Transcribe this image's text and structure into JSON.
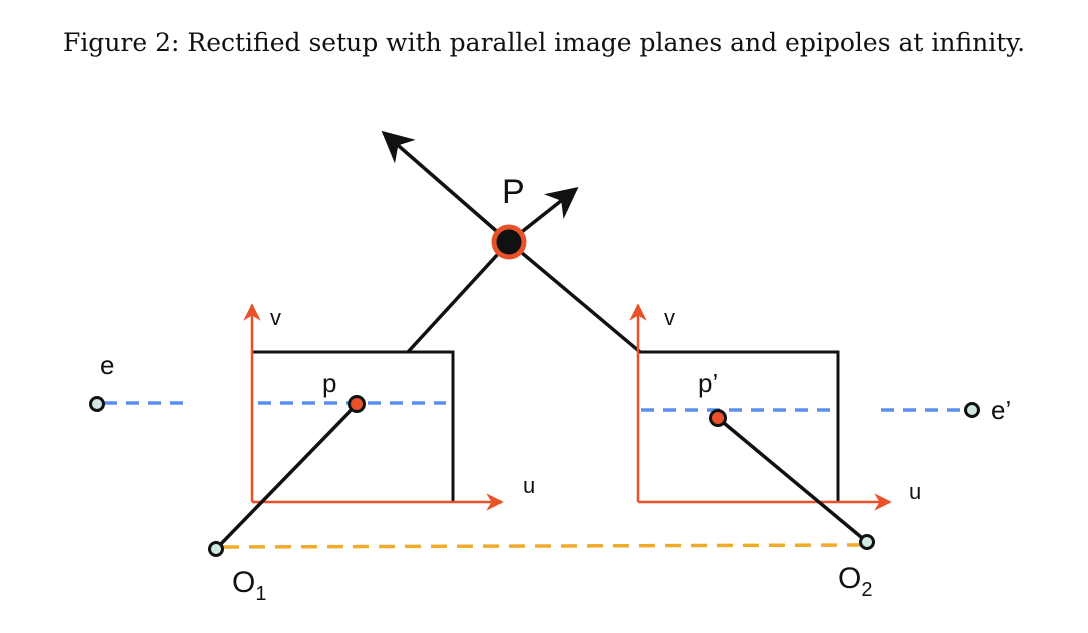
{
  "caption": "Figure 2: Rectified setup with parallel image planes and epipoles at infinity.",
  "labels": {
    "P": "P",
    "p": "p",
    "p_prime": "p’",
    "e": "e",
    "e_prime": "e’",
    "O1_main": "O",
    "O1_sub": "1",
    "O2_main": "O",
    "O2_sub": "2",
    "v_left": "v",
    "u_left": "u",
    "v_right": "v",
    "u_right": "u"
  },
  "colors": {
    "axis": "#e8512a",
    "epipolar_line": "#5b8def",
    "baseline": "#f0aa2c",
    "point_fill_image": "#e8512a",
    "camera_center_fill": "#cfe8e4",
    "line": "#111111"
  }
}
